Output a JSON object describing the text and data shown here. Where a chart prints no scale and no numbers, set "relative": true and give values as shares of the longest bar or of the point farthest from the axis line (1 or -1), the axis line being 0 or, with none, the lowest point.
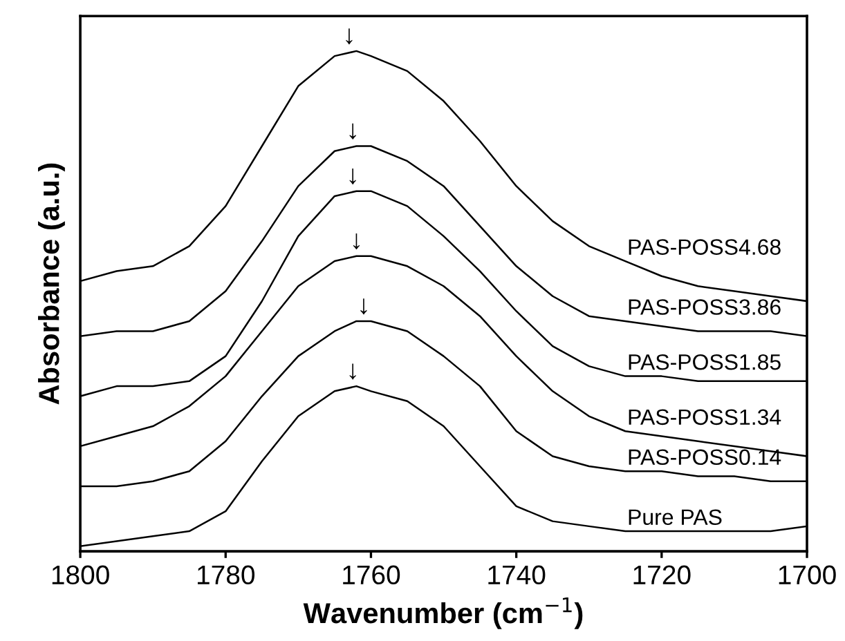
{
  "chart_data": {
    "type": "line",
    "relative": true,
    "xlabel": "Wavenumber (cm$^{−1}$)",
    "ylabel": "Absorbance (a.u.)",
    "x": [
      1800,
      1795,
      1790,
      1785,
      1780,
      1775,
      1770,
      1765,
      1762,
      1760,
      1755,
      1750,
      1745,
      1740,
      1735,
      1730,
      1725,
      1720,
      1715,
      1710,
      1705,
      1700
    ],
    "xlim": [
      1800,
      1700
    ],
    "xticks": [
      1800,
      1780,
      1760,
      1740,
      1720,
      1700
    ],
    "tick_labels": "x",
    "grid": false,
    "legend": false,
    "marker": "none",
    "line_style": "solid",
    "series": [
      {
        "name": "PAS-POSS4.68",
        "color": "#000000",
        "values": [
          0.54,
          0.56,
          0.57,
          0.61,
          0.69,
          0.81,
          0.93,
          0.99,
          1.0,
          0.99,
          0.96,
          0.9,
          0.82,
          0.73,
          0.66,
          0.61,
          0.58,
          0.55,
          0.53,
          0.52,
          0.51,
          0.5
        ]
      },
      {
        "name": "PAS-POSS3.86",
        "color": "#000000",
        "values": [
          0.43,
          0.44,
          0.44,
          0.46,
          0.52,
          0.62,
          0.73,
          0.8,
          0.81,
          0.81,
          0.78,
          0.73,
          0.65,
          0.57,
          0.51,
          0.47,
          0.46,
          0.45,
          0.44,
          0.44,
          0.44,
          0.43
        ]
      },
      {
        "name": "PAS-POSS1.85",
        "color": "#000000",
        "values": [
          0.31,
          0.33,
          0.33,
          0.34,
          0.39,
          0.5,
          0.63,
          0.71,
          0.72,
          0.72,
          0.69,
          0.63,
          0.56,
          0.48,
          0.41,
          0.37,
          0.35,
          0.35,
          0.34,
          0.34,
          0.34,
          0.34
        ]
      },
      {
        "name": "PAS-POSS1.34",
        "color": "#000000",
        "values": [
          0.21,
          0.23,
          0.25,
          0.29,
          0.35,
          0.44,
          0.53,
          0.58,
          0.59,
          0.59,
          0.57,
          0.53,
          0.47,
          0.39,
          0.32,
          0.27,
          0.24,
          0.23,
          0.22,
          0.21,
          0.2,
          0.19
        ]
      },
      {
        "name": "PAS-POSS0.14",
        "color": "#000000",
        "values": [
          0.13,
          0.13,
          0.14,
          0.16,
          0.22,
          0.31,
          0.39,
          0.44,
          0.46,
          0.46,
          0.44,
          0.39,
          0.33,
          0.24,
          0.19,
          0.17,
          0.16,
          0.16,
          0.15,
          0.15,
          0.14,
          0.14
        ]
      },
      {
        "name": "Pure PAS",
        "color": "#000000",
        "values": [
          0.01,
          0.02,
          0.03,
          0.04,
          0.08,
          0.18,
          0.27,
          0.32,
          0.33,
          0.32,
          0.3,
          0.25,
          0.17,
          0.09,
          0.06,
          0.05,
          0.04,
          0.04,
          0.04,
          0.04,
          0.04,
          0.05
        ]
      }
    ],
    "annotations": [
      {
        "text": "↓",
        "x": 1763,
        "y": 1.0
      },
      {
        "text": "↓",
        "x": 1762.5,
        "y": 0.81
      },
      {
        "text": "↓",
        "x": 1762.5,
        "y": 0.72
      },
      {
        "text": "↓",
        "x": 1762,
        "y": 0.59
      },
      {
        "text": "↓",
        "x": 1761,
        "y": 0.46
      },
      {
        "text": "↓",
        "x": 1762.5,
        "y": 0.33
      }
    ]
  }
}
